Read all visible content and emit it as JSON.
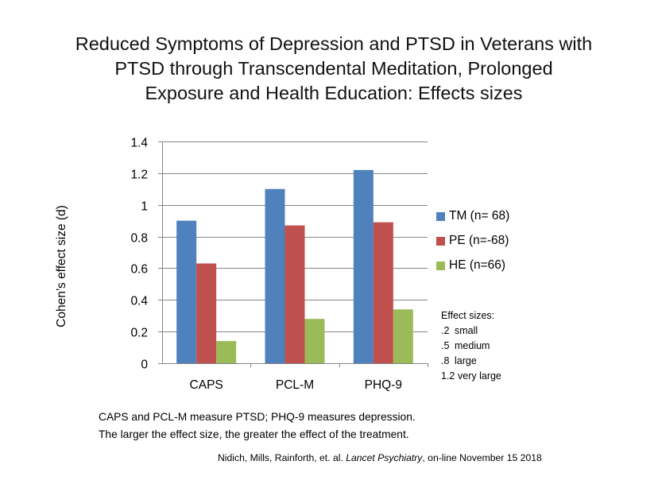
{
  "title_lines": [
    "Reduced Symptoms of Depression and PTSD in Veterans with",
    "PTSD through Transcendental Meditation, Prolonged",
    "Exposure and Health Education: Effects sizes"
  ],
  "chart_data": {
    "type": "bar",
    "title": "Reduced Symptoms of Depression and PTSD in Veterans with PTSD through Transcendental Meditation, Prolonged Exposure and Health Education: Effects sizes",
    "xlabel": "",
    "ylabel": "Cohen’s effect size (d)",
    "categories": [
      "CAPS",
      "PCL-M",
      "PHQ-9"
    ],
    "series": [
      {
        "name": "TM (n= 68)",
        "values": [
          0.9,
          1.1,
          1.22
        ]
      },
      {
        "name": "PE (n=-68)",
        "values": [
          0.63,
          0.87,
          0.89
        ]
      },
      {
        "name": "HE (n=66)",
        "values": [
          0.14,
          0.28,
          0.34
        ]
      }
    ],
    "ylim": [
      0,
      1.4
    ],
    "yticks": [
      "0",
      "0.2",
      "0.4",
      "0.6",
      "0.8",
      "1",
      "1.2",
      "1.4"
    ],
    "grid": true,
    "legend_position": "right"
  },
  "colors": {
    "series": [
      "#4f81bd",
      "#c0504d",
      "#9bbb59"
    ],
    "grid": "#868686",
    "axis": "#868686"
  },
  "effect_sizes": {
    "heading": "Effect sizes:",
    "rows": [
      {
        "code": ".2",
        "label": "small"
      },
      {
        "code": ".5",
        "label": "medium"
      },
      {
        "code": ".8",
        "label": "large"
      },
      {
        "code": "1.2",
        "label": "very large"
      }
    ]
  },
  "notes": [
    "CAPS and PCL-M measure  PTSD; PHQ-9 measures depression.",
    "The larger the effect size, the greater the effect of the treatment."
  ],
  "citation": {
    "authors": "Nidich, Mills, Rainforth, et. al. ",
    "journal": "Lancet Psychiatry",
    "rest": ", on-line  November 15 2018"
  }
}
